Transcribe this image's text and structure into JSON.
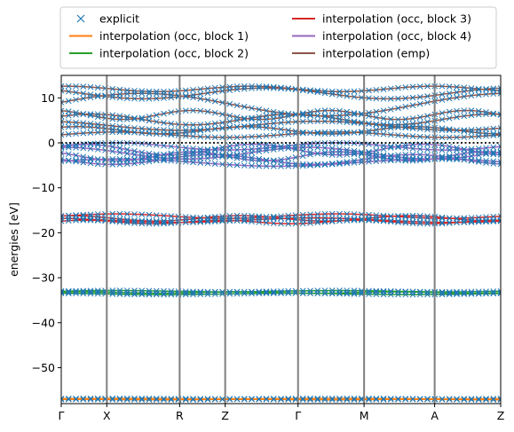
{
  "chart_data": {
    "type": "line",
    "ylabel": "energies [eV]",
    "xlabel": "",
    "ylim": [
      -58,
      15
    ],
    "yticks": [
      10,
      0,
      -10,
      -20,
      -30,
      -40,
      -50
    ],
    "ytick_labels": [
      "10",
      "0",
      "−10",
      "−20",
      "−30",
      "−40",
      "−50"
    ],
    "kpath": [
      {
        "label": "Γ",
        "x": 0
      },
      {
        "label": "X",
        "x": 1
      },
      {
        "label": "R",
        "x": 2.6
      },
      {
        "label": "Z",
        "x": 3.6
      },
      {
        "label": "Γ",
        "x": 5.2
      },
      {
        "label": "M",
        "x": 6.65
      },
      {
        "label": "A",
        "x": 8.2
      },
      {
        "label": "Z",
        "x": 9.65
      }
    ],
    "fermi_level": 0,
    "legend": {
      "placement": "top (outside plot, two columns)",
      "entries": [
        {
          "name": "explicit",
          "color": "#1f77b4",
          "marker": "x"
        },
        {
          "name": "interpolation (occ, block 1)",
          "color": "#ff7f0e",
          "marker": "line"
        },
        {
          "name": "interpolation (occ, block 2)",
          "color": "#2ca02c",
          "marker": "line"
        },
        {
          "name": "interpolation (occ, block 3)",
          "color": "#d62728",
          "marker": "line"
        },
        {
          "name": "interpolation (occ, block 4)",
          "color": "#9467bd",
          "marker": "line"
        },
        {
          "name": "interpolation (emp)",
          "color": "#8c564b",
          "marker": "line"
        }
      ]
    },
    "series": [
      {
        "name": "interpolation (occ, block 1)",
        "color": "#ff7f0e",
        "bands": [
          {
            "base": -56.9,
            "amp": 0.05,
            "freq": 1.0,
            "phase": 0.0
          },
          {
            "base": -57.1,
            "amp": 0.05,
            "freq": 1.3,
            "phase": 1.0
          }
        ]
      },
      {
        "name": "interpolation (occ, block 2)",
        "color": "#2ca02c",
        "bands": [
          {
            "base": -33.0,
            "amp": 0.15,
            "freq": 1.0,
            "phase": 0.0
          },
          {
            "base": -33.3,
            "amp": 0.15,
            "freq": 1.4,
            "phase": 0.8
          },
          {
            "base": -33.6,
            "amp": 0.15,
            "freq": 0.9,
            "phase": 2.0
          }
        ]
      },
      {
        "name": "interpolation (occ, block 3)",
        "color": "#d62728",
        "bands": [
          {
            "base": -16.3,
            "amp": 0.5,
            "freq": 1.0,
            "phase": 0.0
          },
          {
            "base": -16.8,
            "amp": 0.6,
            "freq": 1.3,
            "phase": 1.2
          },
          {
            "base": -17.2,
            "amp": 0.5,
            "freq": 0.8,
            "phase": 2.1
          },
          {
            "base": -17.6,
            "amp": 0.4,
            "freq": 1.6,
            "phase": 0.5
          }
        ]
      },
      {
        "name": "interpolation (occ, block 4)",
        "color": "#9467bd",
        "bands": [
          {
            "base": -0.8,
            "amp": 0.8,
            "freq": 1.0,
            "phase": 0.0
          },
          {
            "base": -1.5,
            "amp": 1.2,
            "freq": 1.3,
            "phase": 0.7
          },
          {
            "base": -2.3,
            "amp": 1.3,
            "freq": 0.9,
            "phase": 1.5
          },
          {
            "base": -3.0,
            "amp": 1.0,
            "freq": 1.5,
            "phase": 2.3
          },
          {
            "base": -3.7,
            "amp": 1.1,
            "freq": 1.1,
            "phase": 3.1
          },
          {
            "base": -4.4,
            "amp": 0.8,
            "freq": 0.7,
            "phase": 0.4
          }
        ]
      },
      {
        "name": "interpolation (emp)",
        "color": "#8c564b",
        "bands": [
          {
            "base": 1.8,
            "amp": 0.6,
            "freq": 1.0,
            "phase": 0.0
          },
          {
            "base": 2.8,
            "amp": 0.8,
            "freq": 1.3,
            "phase": 1.0
          },
          {
            "base": 3.8,
            "amp": 1.0,
            "freq": 0.8,
            "phase": 2.0
          },
          {
            "base": 5.2,
            "amp": 1.2,
            "freq": 1.1,
            "phase": 0.6
          },
          {
            "base": 6.2,
            "amp": 1.0,
            "freq": 1.6,
            "phase": 1.9
          },
          {
            "base": 8.5,
            "amp": 2.5,
            "freq": 0.6,
            "phase": 0.2
          },
          {
            "base": 11.0,
            "amp": 1.2,
            "freq": 0.9,
            "phase": 2.6
          },
          {
            "base": 12.0,
            "amp": 0.6,
            "freq": 1.2,
            "phase": 1.4
          }
        ]
      }
    ]
  }
}
